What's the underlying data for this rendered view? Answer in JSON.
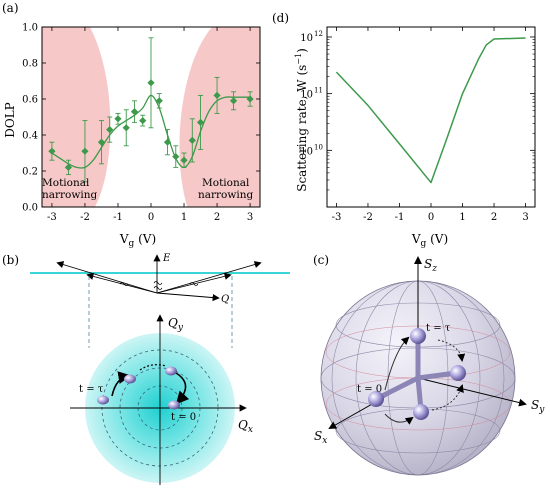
{
  "panels": {
    "a": "(a)",
    "b": "(b)",
    "c": "(c)",
    "d": "(d)"
  },
  "colors": {
    "green": "#3c9a4a",
    "pink": "#f7c8c8",
    "cyan": "#38d6d6",
    "axis": "#000000"
  },
  "panel_a": {
    "ylabel": "DOLP",
    "xlabel_main": "V",
    "xlabel_sub": "g",
    "xlabel_unit": " (V)",
    "annotation_left": [
      "Motional",
      "narrowing"
    ],
    "annotation_right": [
      "Motional",
      "narrowing"
    ]
  },
  "panel_b": {
    "E_label": "E",
    "Q_label": "Q",
    "Qy_main": "Q",
    "Qy_sub": "y",
    "Qx_main": "Q",
    "Qx_sub": "x",
    "t_tau": "t = τ",
    "t_zero": "t = 0"
  },
  "panel_c": {
    "Sz_main": "S",
    "Sz_sub": "z",
    "Sy_main": "S",
    "Sy_sub": "y",
    "Sx_main": "S",
    "Sx_sub": "x",
    "t_tau": "t = τ",
    "t_zero": "t = 0"
  },
  "panel_d": {
    "ylabel_text": "Scattering rate, W (s",
    "ylabel_sup": "−1",
    "ylabel_close": ")",
    "xlabel_main": "V",
    "xlabel_sub": "g",
    "xlabel_unit": " (V)"
  },
  "chart_data": [
    {
      "type": "scatter",
      "panel": "a",
      "xlim": [
        -3.3,
        3.3
      ],
      "ylim": [
        0.0,
        1.0
      ],
      "xticks": [
        -3,
        -2,
        -1,
        0,
        1,
        2,
        3
      ],
      "xtick_labels": [
        "-3",
        "-2",
        "-1",
        "0",
        "1",
        "2",
        "3"
      ],
      "yticks": [
        0.0,
        0.2,
        0.4,
        0.6,
        0.8,
        1.0
      ],
      "ytick_labels": [
        "0.0",
        "0.2",
        "0.4",
        "0.6",
        "0.8",
        "1.0"
      ],
      "points": [
        {
          "x": -3.0,
          "y": 0.31,
          "err": 0.05
        },
        {
          "x": -2.5,
          "y": 0.22,
          "err": 0.04
        },
        {
          "x": -2.0,
          "y": 0.31,
          "err": 0.17
        },
        {
          "x": -1.5,
          "y": 0.36,
          "err": 0.12
        },
        {
          "x": -1.25,
          "y": 0.43,
          "err": 0.07
        },
        {
          "x": -1.0,
          "y": 0.49,
          "err": 0.03
        },
        {
          "x": -0.75,
          "y": 0.44,
          "err": 0.1
        },
        {
          "x": -0.5,
          "y": 0.53,
          "err": 0.06
        },
        {
          "x": -0.25,
          "y": 0.48,
          "err": 0.03
        },
        {
          "x": 0.0,
          "y": 0.69,
          "err": 0.25
        },
        {
          "x": 0.25,
          "y": 0.59,
          "err": 0.04
        },
        {
          "x": 0.5,
          "y": 0.36,
          "err": 0.07
        },
        {
          "x": 0.75,
          "y": 0.28,
          "err": 0.06
        },
        {
          "x": 1.0,
          "y": 0.26,
          "err": 0.04
        },
        {
          "x": 1.25,
          "y": 0.37,
          "err": 0.12
        },
        {
          "x": 1.5,
          "y": 0.47,
          "err": 0.15
        },
        {
          "x": 2.0,
          "y": 0.62,
          "err": 0.1
        },
        {
          "x": 2.5,
          "y": 0.59,
          "err": 0.05
        },
        {
          "x": 3.0,
          "y": 0.6,
          "err": 0.04
        }
      ],
      "fit_curve": {
        "x": [
          -3,
          -2.75,
          -2.5,
          -2.25,
          -2,
          -1.75,
          -1.5,
          -1.25,
          -1,
          -0.75,
          -0.5,
          -0.25,
          0,
          0.25,
          0.5,
          0.75,
          1,
          1.25,
          1.5,
          1.75,
          2,
          2.25,
          2.5,
          2.75,
          3
        ],
        "y": [
          0.3,
          0.27,
          0.24,
          0.22,
          0.22,
          0.26,
          0.33,
          0.4,
          0.45,
          0.48,
          0.51,
          0.55,
          0.62,
          0.55,
          0.4,
          0.27,
          0.22,
          0.28,
          0.42,
          0.53,
          0.59,
          0.61,
          0.61,
          0.61,
          0.61
        ]
      }
    },
    {
      "type": "line",
      "panel": "d",
      "scale_y": "log",
      "xlim": [
        -3.3,
        3.3
      ],
      "ylim": [
        1000000000.0,
        1500000000000.0
      ],
      "xticks": [
        -3,
        -2,
        -1,
        0,
        1,
        2,
        3
      ],
      "xtick_labels": [
        "-3",
        "-2",
        "-1",
        "0",
        "1",
        "2",
        "3"
      ],
      "ytick_labels": [
        {
          "value": 10000000000.0,
          "base": "10",
          "exp": "10"
        },
        {
          "value": 100000000000.0,
          "base": "10",
          "exp": "11"
        },
        {
          "value": 1000000000000.0,
          "base": "10",
          "exp": "12"
        }
      ],
      "x": [
        -3,
        -2,
        -1,
        0,
        0.5,
        1,
        1.5,
        1.75,
        2,
        3
      ],
      "y": [
        240000000000.0,
        62000000000.0,
        13000000000.0,
        2700000000.0,
        16000000000.0,
        100000000000.0,
        400000000000.0,
        720000000000.0,
        920000000000.0,
        960000000000.0
      ]
    }
  ]
}
